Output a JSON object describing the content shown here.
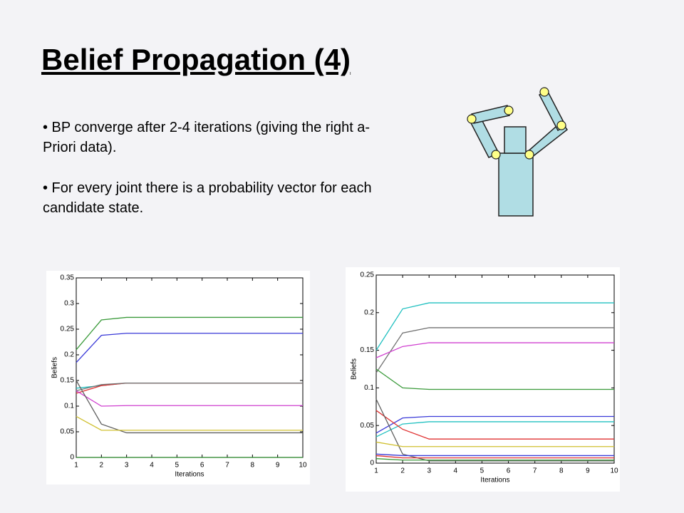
{
  "header": {
    "title": "Belief Propagation (4)"
  },
  "bullets": [
    "• BP converge after 2-4 iterations (giving the right a-Priori data).",
    "• For every joint there is a probability vector for each candidate state."
  ],
  "chart_data": [
    {
      "type": "line",
      "xlabel": "Iterations",
      "ylabel": "Beliefs",
      "x": [
        1,
        2,
        3,
        4,
        5,
        6,
        7,
        8,
        9,
        10
      ],
      "xlim": [
        1,
        10
      ],
      "xticks": [
        1,
        2,
        3,
        4,
        5,
        6,
        7,
        8,
        9,
        10
      ],
      "ylim": [
        0,
        0.35
      ],
      "yticks": [
        0,
        0.05,
        0.1,
        0.15,
        0.2,
        0.25,
        0.3,
        0.35
      ],
      "series": [
        {
          "color": "#3a9a3a",
          "values": [
            0.21,
            0.268,
            0.273,
            0.273,
            0.273,
            0.273,
            0.273,
            0.273,
            0.273,
            0.273
          ]
        },
        {
          "color": "#3a3ad8",
          "values": [
            0.185,
            0.238,
            0.242,
            0.242,
            0.242,
            0.242,
            0.242,
            0.242,
            0.242,
            0.242
          ]
        },
        {
          "color": "#20c0c0",
          "values": [
            0.135,
            0.14,
            0.145,
            0.145,
            0.145,
            0.145,
            0.145,
            0.145,
            0.145,
            0.145
          ]
        },
        {
          "color": "#e03030",
          "values": [
            0.125,
            0.14,
            0.145,
            0.145,
            0.145,
            0.145,
            0.145,
            0.145,
            0.145,
            0.145
          ]
        },
        {
          "color": "#707070",
          "values": [
            0.13,
            0.142,
            0.145,
            0.145,
            0.145,
            0.145,
            0.145,
            0.145,
            0.145,
            0.145
          ]
        },
        {
          "color": "#d040d0",
          "values": [
            0.13,
            0.1,
            0.101,
            0.101,
            0.101,
            0.101,
            0.101,
            0.101,
            0.101,
            0.101
          ]
        },
        {
          "color": "#606060",
          "values": [
            0.15,
            0.065,
            0.048,
            0.048,
            0.048,
            0.048,
            0.048,
            0.048,
            0.048,
            0.048
          ]
        },
        {
          "color": "#d0c030",
          "values": [
            0.08,
            0.053,
            0.053,
            0.053,
            0.053,
            0.053,
            0.053,
            0.053,
            0.053,
            0.053
          ]
        },
        {
          "color": "#208020",
          "values": [
            0,
            0,
            0,
            0,
            0,
            0,
            0,
            0,
            0,
            0
          ]
        }
      ]
    },
    {
      "type": "line",
      "xlabel": "Iterations",
      "ylabel": "Beliefs",
      "x": [
        1,
        2,
        3,
        4,
        5,
        6,
        7,
        8,
        9,
        10
      ],
      "xlim": [
        1,
        10
      ],
      "xticks": [
        1,
        2,
        3,
        4,
        5,
        6,
        7,
        8,
        9,
        10
      ],
      "ylim": [
        0,
        0.25
      ],
      "yticks": [
        0,
        0.05,
        0.1,
        0.15,
        0.2,
        0.25
      ],
      "series": [
        {
          "color": "#20c0c0",
          "values": [
            0.15,
            0.205,
            0.213,
            0.213,
            0.213,
            0.213,
            0.213,
            0.213,
            0.213,
            0.213
          ]
        },
        {
          "color": "#707070",
          "values": [
            0.12,
            0.173,
            0.18,
            0.18,
            0.18,
            0.18,
            0.18,
            0.18,
            0.18,
            0.18
          ]
        },
        {
          "color": "#d040d0",
          "values": [
            0.14,
            0.155,
            0.16,
            0.16,
            0.16,
            0.16,
            0.16,
            0.16,
            0.16,
            0.16
          ]
        },
        {
          "color": "#3a9a3a",
          "values": [
            0.125,
            0.1,
            0.098,
            0.098,
            0.098,
            0.098,
            0.098,
            0.098,
            0.098,
            0.098
          ]
        },
        {
          "color": "#3a3ad8",
          "values": [
            0.04,
            0.06,
            0.062,
            0.062,
            0.062,
            0.062,
            0.062,
            0.062,
            0.062,
            0.062
          ]
        },
        {
          "color": "#20c0c0",
          "values": [
            0.035,
            0.052,
            0.055,
            0.055,
            0.055,
            0.055,
            0.055,
            0.055,
            0.055,
            0.055
          ]
        },
        {
          "color": "#e03030",
          "values": [
            0.07,
            0.045,
            0.032,
            0.032,
            0.032,
            0.032,
            0.032,
            0.032,
            0.032,
            0.032
          ]
        },
        {
          "color": "#606060",
          "values": [
            0.085,
            0.012,
            0.003,
            0.003,
            0.003,
            0.003,
            0.003,
            0.003,
            0.003,
            0.003
          ]
        },
        {
          "color": "#d0c030",
          "values": [
            0.028,
            0.022,
            0.022,
            0.022,
            0.022,
            0.022,
            0.022,
            0.022,
            0.022,
            0.022
          ]
        },
        {
          "color": "#3a3ad8",
          "values": [
            0.012,
            0.01,
            0.01,
            0.01,
            0.01,
            0.01,
            0.01,
            0.01,
            0.01,
            0.01
          ]
        },
        {
          "color": "#e03030",
          "values": [
            0.01,
            0.007,
            0.007,
            0.007,
            0.007,
            0.007,
            0.007,
            0.007,
            0.007,
            0.007
          ]
        },
        {
          "color": "#3a9a3a",
          "values": [
            0.006,
            0.004,
            0.004,
            0.004,
            0.004,
            0.004,
            0.004,
            0.004,
            0.004,
            0.004
          ]
        }
      ]
    }
  ]
}
